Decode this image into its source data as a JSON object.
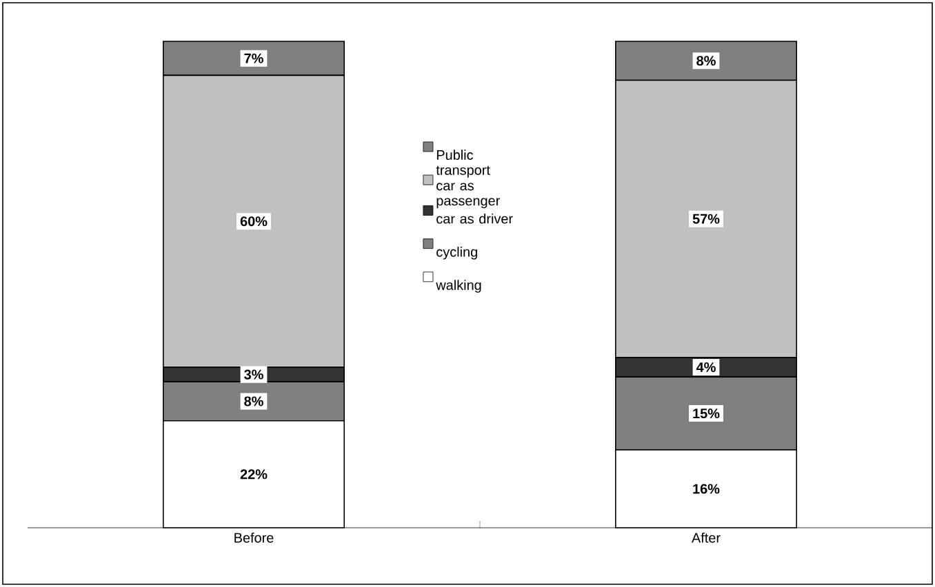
{
  "chart_data": {
    "type": "bar",
    "stacked": true,
    "categories": [
      "Before",
      "After"
    ],
    "ylim": [
      0,
      100
    ],
    "legend": "top",
    "series": [
      {
        "name": "walking",
        "color": "#ffffff",
        "values": [
          22,
          16
        ],
        "value_labels": [
          "22%",
          "16%"
        ]
      },
      {
        "name": "cycling",
        "color": "#808080",
        "values": [
          8,
          15
        ],
        "value_labels": [
          "8%",
          "15%"
        ]
      },
      {
        "name": "car as driver",
        "color": "#333333",
        "values": [
          3,
          4
        ],
        "value_labels": [
          "3%",
          "4%"
        ]
      },
      {
        "name": "car as passenger",
        "color": "#c0c0c0",
        "values": [
          60,
          57
        ],
        "value_labels": [
          "60%",
          "57%"
        ]
      },
      {
        "name": "Public transport",
        "color": "#808080",
        "values": [
          7,
          8
        ],
        "value_labels": [
          "7%",
          "8%"
        ]
      }
    ]
  }
}
